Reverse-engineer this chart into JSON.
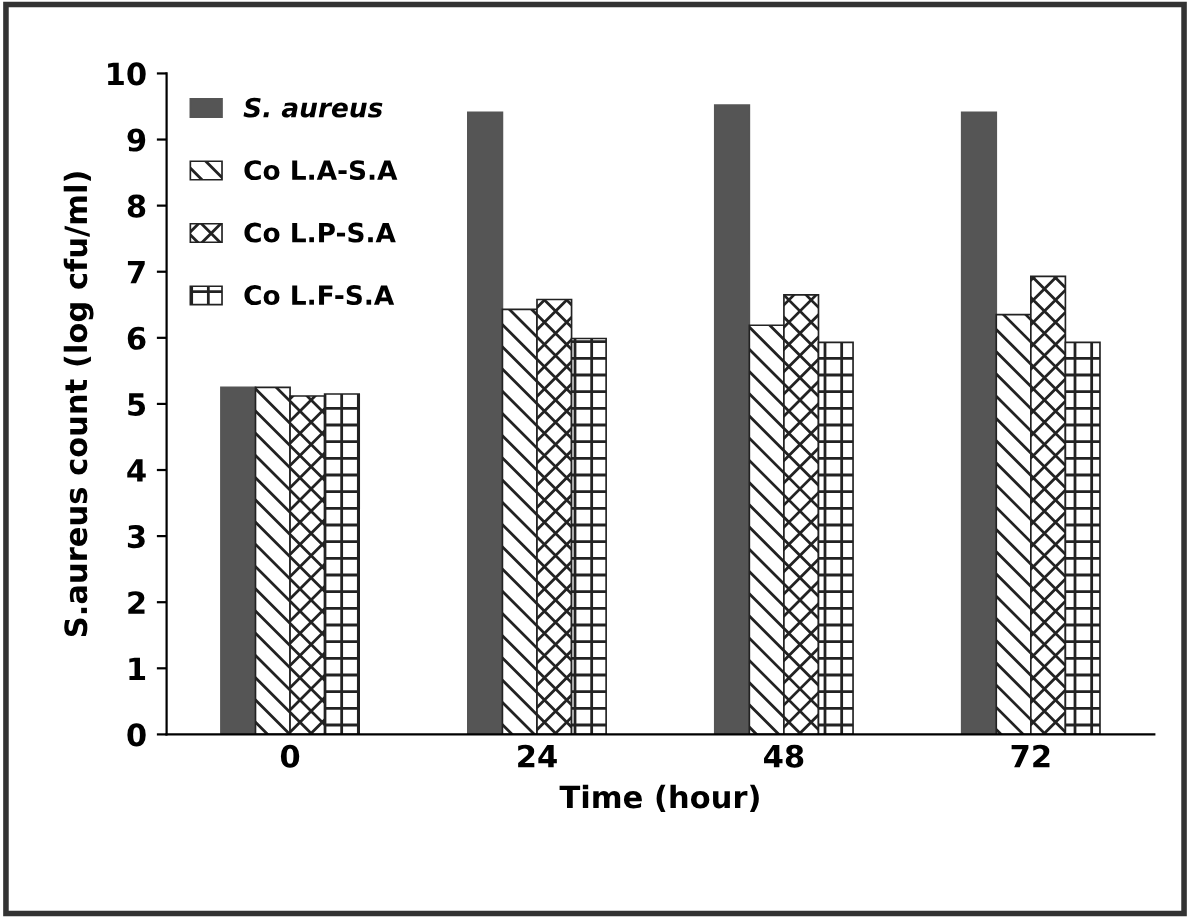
{
  "chart_data": {
    "type": "bar",
    "xlabel": "Time (hour)",
    "ylabel": "S.aureus count (log cfu/ml)",
    "categories": [
      "0",
      "24",
      "48",
      "72"
    ],
    "series": [
      {
        "name": "S. aureus",
        "color": "#555555",
        "values": [
          5.25,
          9.41,
          9.52,
          9.41
        ]
      },
      {
        "name": "Co L.A-S.A",
        "color": "#222222",
        "values": [
          5.25,
          6.43,
          6.19,
          6.35
        ]
      },
      {
        "name": "Co L.P-S.A",
        "color": "#222222",
        "values": [
          5.12,
          6.58,
          6.65,
          6.93
        ]
      },
      {
        "name": "Co L.F-S.A",
        "color": "#222222",
        "values": [
          5.15,
          5.99,
          5.93,
          5.93
        ]
      }
    ],
    "ylim": [
      0,
      10
    ],
    "yticks": [
      0,
      1,
      2,
      3,
      4,
      5,
      6,
      7,
      8,
      9,
      10
    ],
    "grid": false,
    "legend": "top left"
  }
}
